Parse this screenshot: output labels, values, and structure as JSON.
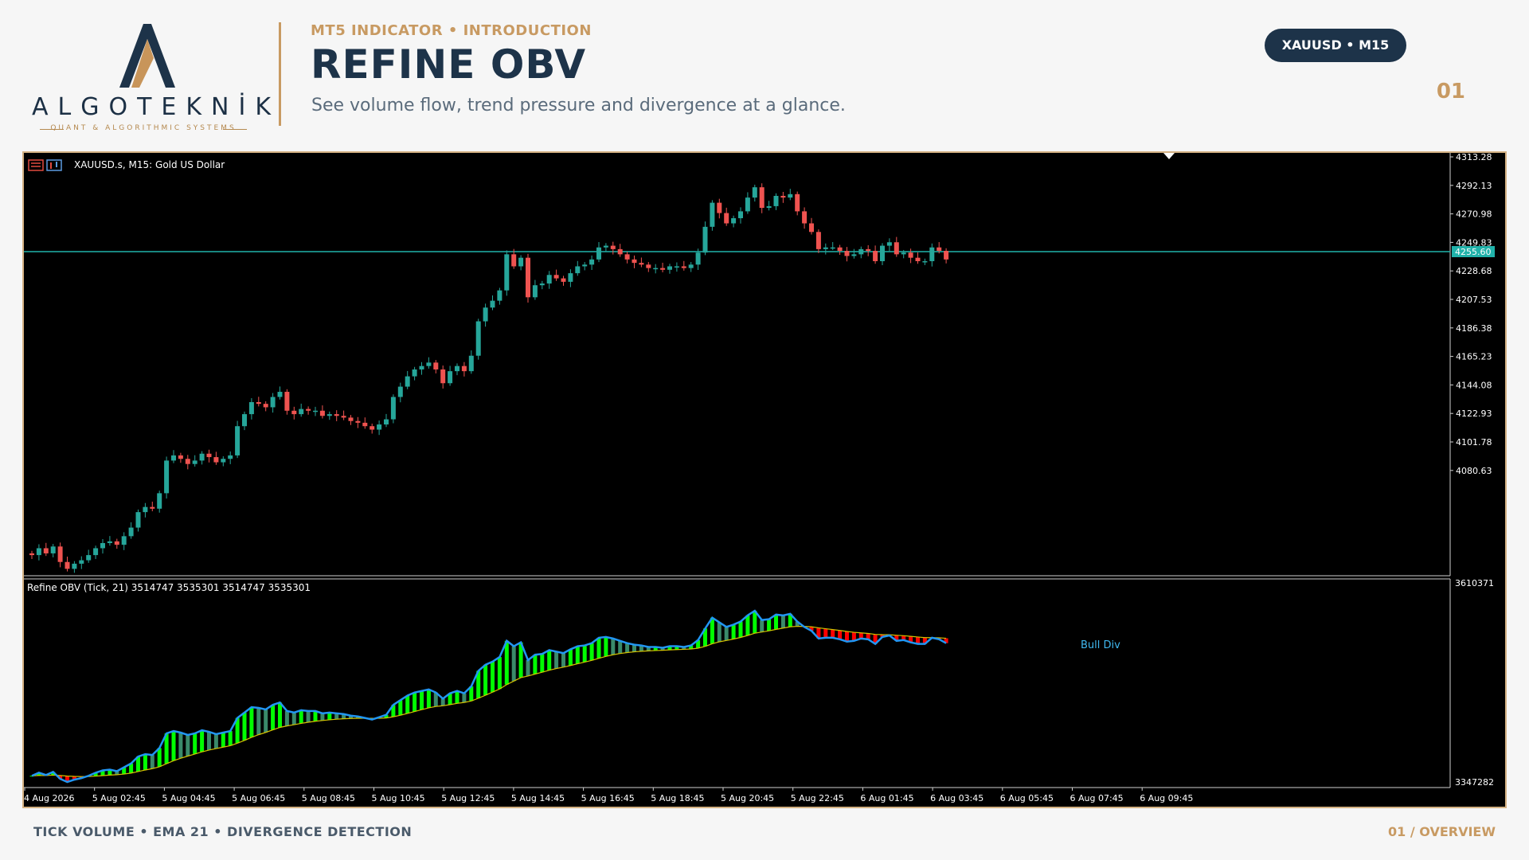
{
  "logo": {
    "brand": "ALGOTEKNİK",
    "tagline": "QUANT & ALGORITHMIC SYSTEMS",
    "colors": {
      "navy": "#1d3349",
      "gold": "#c8955a"
    }
  },
  "header": {
    "kicker": "MT5 INDICATOR • INTRODUCTION",
    "title": "REFINE OBV",
    "subtitle": "See volume flow, trend pressure and divergence at a glance.",
    "badge": "XAUUSD • M15",
    "page_number": "01"
  },
  "chart": {
    "symbol_label": "XAUUSD.s, M15:  Gold US Dollar",
    "price_axis": [
      "4313.28",
      "4292.13",
      "4270.98",
      "4249.83",
      "4228.68",
      "4207.53",
      "4186.38",
      "4165.23",
      "4144.08",
      "4122.93",
      "4101.78",
      "4080.63"
    ],
    "current_price": "4255.60",
    "indicator_label": "Refine OBV (Tick, 21) 3514747 3535301 3514747 3535301",
    "indicator_axis": [
      "3610371",
      "3347282"
    ],
    "divergence_label": "Bull Div",
    "time_axis": [
      "4 Aug 2026",
      "5 Aug 02:45",
      "5 Aug 04:45",
      "5 Aug 06:45",
      "5 Aug 08:45",
      "5 Aug 10:45",
      "5 Aug 12:45",
      "5 Aug 14:45",
      "5 Aug 16:45",
      "5 Aug 18:45",
      "5 Aug 20:45",
      "5 Aug 22:45",
      "6 Aug 01:45",
      "6 Aug 03:45",
      "6 Aug 05:45",
      "6 Aug 07:45",
      "6 Aug 09:45"
    ],
    "colors": {
      "bull": "#26a69a",
      "bear": "#ef5350",
      "obv_line": "#2196f3",
      "ema_line": "#d4c400",
      "hist_up": "#00ff00",
      "hist_down": "#ff0000",
      "price_line": "#20b2aa"
    }
  },
  "chart_data": {
    "type": "candlestick",
    "title": "XAUUSD.s, M15:  Gold US Dollar",
    "ylim": [
      4071,
      4317
    ],
    "close": [
      4083,
      4087,
      4084,
      4088,
      4079,
      4075,
      4078,
      4080,
      4083,
      4087,
      4090,
      4091,
      4089,
      4094,
      4099,
      4108,
      4111,
      4110,
      4119,
      4138,
      4141,
      4139,
      4136,
      4138,
      4142,
      4140,
      4137,
      4139,
      4141,
      4158,
      4165,
      4172,
      4171,
      4169,
      4175,
      4178,
      4167,
      4165,
      4168,
      4167,
      4167,
      4164,
      4165,
      4164,
      4163,
      4161,
      4160,
      4158,
      4156,
      4159,
      4162,
      4175,
      4181,
      4187,
      4191,
      4193,
      4195,
      4191,
      4183,
      4190,
      4193,
      4190,
      4199,
      4219,
      4227,
      4231,
      4237,
      4258,
      4251,
      4256,
      4233,
      4240,
      4241,
      4246,
      4244,
      4242,
      4247,
      4251,
      4252,
      4255,
      4262,
      4263,
      4261,
      4258,
      4255,
      4253,
      4252,
      4250,
      4250,
      4249,
      4251,
      4251,
      4250,
      4252,
      4259,
      4274,
      4288,
      4282,
      4276,
      4279,
      4283,
      4291,
      4297,
      4285,
      4286,
      4292,
      4291,
      4293,
      4283,
      4276,
      4271,
      4261,
      4262,
      4262,
      4260,
      4257,
      4258,
      4261,
      4260,
      4254,
      4263,
      4265,
      4258,
      4259,
      4256,
      4254,
      4254,
      4262,
      4260,
      4255
    ]
  }
}
